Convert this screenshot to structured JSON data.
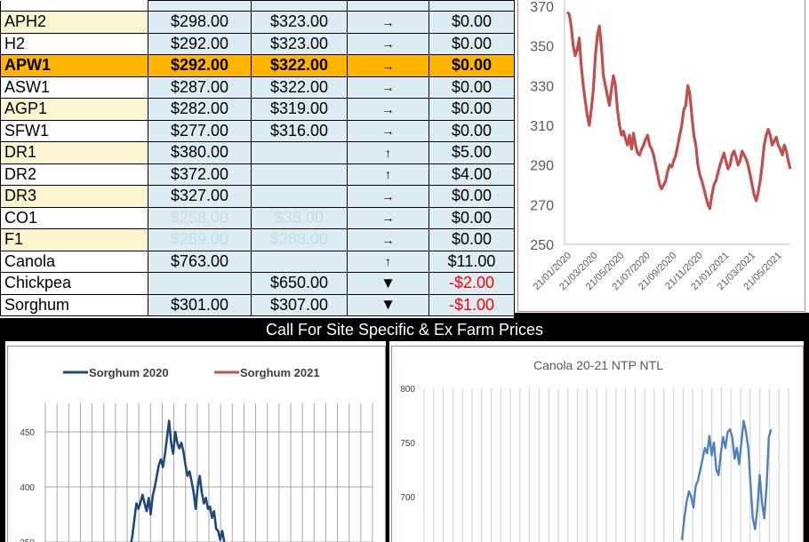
{
  "table": {
    "rows": [
      {
        "grade": "APH2",
        "price1": "$298.00",
        "price2": "$323.00",
        "arrow": "→",
        "change": "$0.00",
        "style": "alt"
      },
      {
        "grade": "H2",
        "price1": "$292.00",
        "price2": "$323.00",
        "arrow": "→",
        "change": "$0.00",
        "style": "plain"
      },
      {
        "grade": "APW1",
        "price1": "$292.00",
        "price2": "$322.00",
        "arrow": "→",
        "change": "$0.00",
        "style": "highlight"
      },
      {
        "grade": "ASW1",
        "price1": "$287.00",
        "price2": "$322.00",
        "arrow": "→",
        "change": "$0.00",
        "style": "plain"
      },
      {
        "grade": "AGP1",
        "price1": "$282.00",
        "price2": "$319.00",
        "arrow": "→",
        "change": "$0.00",
        "style": "alt"
      },
      {
        "grade": "SFW1",
        "price1": "$277.00",
        "price2": "$316.00",
        "arrow": "→",
        "change": "$0.00",
        "style": "plain"
      },
      {
        "grade": "DR1",
        "price1": "$380.00",
        "price2": "",
        "arrow": "↑",
        "change": "$5.00",
        "style": "alt"
      },
      {
        "grade": "DR2",
        "price1": "$372.00",
        "price2": "",
        "arrow": "↑",
        "change": "$4.00",
        "style": "plain"
      },
      {
        "grade": "DR3",
        "price1": "$327.00",
        "price2": "",
        "arrow": "→",
        "change": "$0.00",
        "style": "alt"
      },
      {
        "grade": "CO1",
        "price1": "$258.00",
        "price2": "$35.00",
        "arrow": "→",
        "change": "$0.00",
        "style": "plain",
        "faded": true
      },
      {
        "grade": "F1",
        "price1": "$289.00",
        "price2": "$288.00",
        "arrow": "→",
        "change": "$0.00",
        "style": "alt",
        "faded": true
      },
      {
        "grade": "Canola",
        "price1": "$763.00",
        "price2": "",
        "arrow": "↑",
        "change": "$11.00",
        "style": "plain"
      },
      {
        "grade": "Chickpea",
        "price1": "",
        "price2": "$650.00",
        "arrow": "▼",
        "change": "-$2.00",
        "style": "plain",
        "negative": true
      },
      {
        "grade": "Sorghum",
        "price1": "$301.00",
        "price2": "$307.00",
        "arrow": "▼",
        "change": "-$1.00",
        "style": "plain",
        "negative": true
      }
    ]
  },
  "banner": {
    "text": "Call For Site Specific & Ex Farm Prices"
  },
  "colors": {
    "highlight": "#ffb400",
    "price_bg": "#dcecf2",
    "alt_bg": "#fdf5cf",
    "red_line": "#c0504d",
    "blue_line": "#1f497d",
    "canola_line": "#4f81bd",
    "negative": "#ff0000"
  },
  "chart_data": [
    {
      "type": "line",
      "title": "",
      "ylim": [
        250,
        370
      ],
      "yticks": [
        370,
        350,
        330,
        310,
        290,
        270,
        250
      ],
      "xlabels": [
        "21/01/2020",
        "21/03/2020",
        "21/05/2020",
        "21/07/2020",
        "21/09/2020",
        "21/11/2020",
        "21/01/2021",
        "21/03/2021",
        "21/05/2021"
      ],
      "series": [
        {
          "values": [
            367,
            366,
            360,
            350,
            345,
            348,
            354,
            340,
            330,
            322,
            315,
            310,
            318,
            328,
            345,
            355,
            360,
            350,
            335,
            330,
            325,
            320,
            328,
            335,
            330,
            318,
            310,
            305,
            307,
            303,
            300,
            305,
            298,
            306,
            300,
            296,
            295,
            298,
            300,
            303,
            305,
            300,
            298,
            295,
            290,
            285,
            280,
            278,
            280,
            282,
            287,
            290,
            289,
            292,
            295,
            300,
            305,
            310,
            318,
            320,
            330,
            326,
            315,
            305,
            300,
            290,
            285,
            282,
            278,
            274,
            270,
            268,
            275,
            280,
            282,
            286,
            290,
            293,
            296,
            292,
            288,
            290,
            295,
            297,
            294,
            290,
            292,
            297,
            295,
            293,
            290,
            285,
            280,
            275,
            272,
            276,
            282,
            290,
            300,
            305,
            308,
            305,
            300,
            302,
            304,
            300,
            298,
            295,
            300,
            297,
            292,
            288
          ]
        }
      ]
    },
    {
      "type": "line",
      "legend_position": "top",
      "ylim": [
        340,
        480
      ],
      "yticks": [
        450,
        400,
        350
      ],
      "series": [
        {
          "name": "Sorghum 2020",
          "values": [
            null,
            null,
            null,
            null,
            null,
            null,
            null,
            null,
            null,
            null,
            null,
            null,
            null,
            null,
            null,
            null,
            null,
            null,
            null,
            null,
            null,
            null,
            null,
            null,
            null,
            345,
            355,
            370,
            385,
            380,
            386,
            393,
            385,
            378,
            390,
            375,
            392,
            400,
            410,
            420,
            425,
            418,
            430,
            445,
            460,
            440,
            430,
            450,
            440,
            435,
            440,
            432,
            420,
            410,
            414,
            405,
            395,
            380,
            400,
            410,
            395,
            385,
            390,
            380,
            382,
            372,
            378,
            362,
            360,
            352,
            360,
            350
          ]
        },
        {
          "name": "Sorghum 2021",
          "values": []
        }
      ]
    },
    {
      "type": "line",
      "title": "Canola 20-21 NTP NTL",
      "ylim": [
        660,
        800
      ],
      "yticks": [
        800,
        750,
        700
      ],
      "series": [
        {
          "values": [
            null,
            null,
            null,
            null,
            null,
            null,
            null,
            null,
            null,
            null,
            null,
            null,
            null,
            null,
            null,
            null,
            null,
            null,
            null,
            null,
            null,
            null,
            null,
            null,
            null,
            null,
            null,
            null,
            null,
            null,
            null,
            null,
            null,
            null,
            null,
            null,
            null,
            null,
            null,
            null,
            null,
            null,
            null,
            null,
            null,
            null,
            null,
            null,
            null,
            null,
            null,
            null,
            null,
            null,
            null,
            null,
            null,
            null,
            null,
            null,
            null,
            null,
            null,
            null,
            null,
            null,
            null,
            null,
            null,
            null,
            null,
            null,
            null,
            null,
            null,
            null,
            null,
            null,
            null,
            null,
            null,
            null,
            null,
            null,
            null,
            null,
            null,
            null,
            660,
            680,
            695,
            705,
            700,
            690,
            710,
            715,
            725,
            735,
            745,
            740,
            756,
            738,
            750,
            725,
            720,
            740,
            755,
            745,
            760,
            762,
            755,
            735,
            745,
            730,
            750,
            770,
            760,
            745,
            710,
            680,
            670,
            690,
            720,
            695,
            680,
            710,
            755,
            762
          ]
        }
      ]
    }
  ]
}
